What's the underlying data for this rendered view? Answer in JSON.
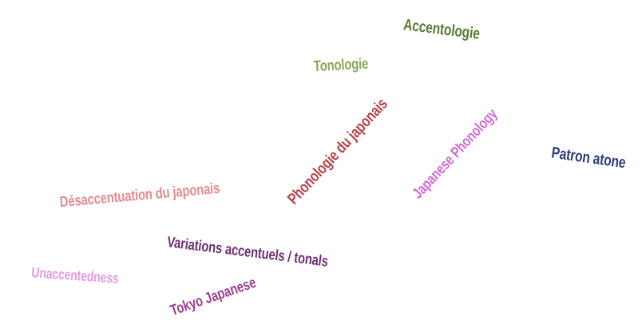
{
  "word_cloud": {
    "words": {
      "accentologie": {
        "text": "Accentologie",
        "color": "#5a7a35"
      },
      "tonologie": {
        "text": "Tonologie",
        "color": "#8aa55a"
      },
      "phonologie_du_japonais": {
        "text": "Phonologie du japonais",
        "color": "#b5414a"
      },
      "japanese_phonology": {
        "text": "Japanese Phonology",
        "color": "#d26ad6"
      },
      "patron_atone": {
        "text": "Patron atone",
        "color": "#2f3a7a"
      },
      "desaccentuation": {
        "text": "Désaccentuation du japonais",
        "color": "#e68a8e"
      },
      "variations": {
        "text": "Variations accentuels / tonals",
        "color": "#6e2f70"
      },
      "unaccentedness": {
        "text": "Unaccentedness",
        "color": "#e59ae0"
      },
      "tokyo_japanese": {
        "text": "Tokyo Japanese",
        "color": "#9c3f8f"
      }
    }
  }
}
